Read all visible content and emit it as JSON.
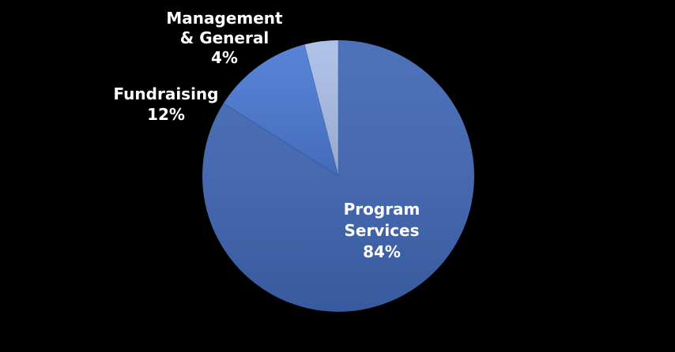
{
  "chart_data": {
    "type": "pie",
    "title": "",
    "slices": [
      {
        "label_lines": [
          "Program",
          "Services"
        ],
        "percent_label": "84%",
        "value": 84,
        "color": "#3f66b4"
      },
      {
        "label_lines": [
          "Fundraising"
        ],
        "percent_label": "12%",
        "value": 12,
        "color": "#4a78d2"
      },
      {
        "label_lines": [
          "Management",
          "& General"
        ],
        "percent_label": "4%",
        "value": 4,
        "color": "#a9bde6"
      }
    ],
    "start_angle": "12 o'clock",
    "direction": "clockwise",
    "background": "#000000"
  }
}
